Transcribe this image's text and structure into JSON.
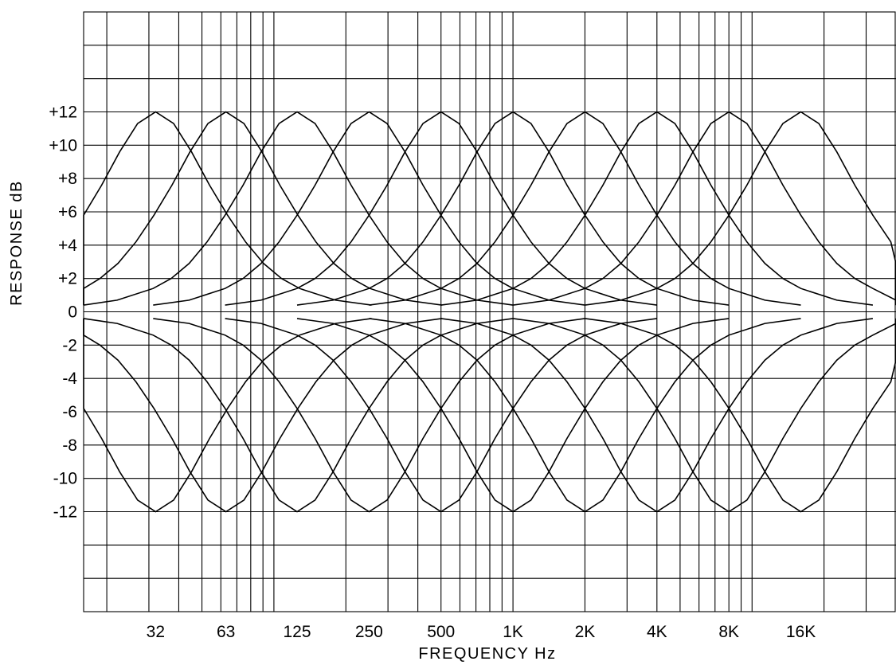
{
  "chart_data": {
    "type": "line",
    "title": "",
    "xlabel": "FREQUENCY Hz",
    "ylabel": "RESPONSE dB",
    "x_scale": "log",
    "xlim": [
      16,
      40000
    ],
    "ylim": [
      -18,
      18
    ],
    "grid": true,
    "legend": "none",
    "x_ticks": [
      {
        "value": 32,
        "label": "32"
      },
      {
        "value": 63,
        "label": "63"
      },
      {
        "value": 125,
        "label": "125"
      },
      {
        "value": 250,
        "label": "250"
      },
      {
        "value": 500,
        "label": "500"
      },
      {
        "value": 1000,
        "label": "1K"
      },
      {
        "value": 2000,
        "label": "2K"
      },
      {
        "value": 4000,
        "label": "4K"
      },
      {
        "value": 8000,
        "label": "8K"
      },
      {
        "value": 16000,
        "label": "16K"
      }
    ],
    "y_ticks": [
      {
        "value": 12,
        "label": "+12"
      },
      {
        "value": 10,
        "label": "+10"
      },
      {
        "value": 8,
        "label": "+8"
      },
      {
        "value": 6,
        "label": "+6"
      },
      {
        "value": 4,
        "label": "+4"
      },
      {
        "value": 2,
        "label": "+2"
      },
      {
        "value": 0,
        "label": "0"
      },
      {
        "value": -2,
        "label": "-2"
      },
      {
        "value": -4,
        "label": "-4"
      },
      {
        "value": -6,
        "label": "-6"
      },
      {
        "value": -8,
        "label": "-8"
      },
      {
        "value": -10,
        "label": "-10"
      },
      {
        "value": -12,
        "label": "-12"
      }
    ],
    "band_shape": {
      "relative_octave": [
        -3.0,
        -2.5,
        -2.0,
        -1.75,
        -1.5,
        -1.25,
        -1.0,
        -0.75,
        -0.5,
        -0.25,
        0.0,
        0.25,
        0.5,
        0.75,
        1.0,
        1.25,
        1.5,
        1.75,
        2.0,
        2.5,
        3.0
      ],
      "gain_db": [
        0.4,
        0.7,
        1.4,
        2.0,
        2.9,
        4.2,
        5.8,
        7.6,
        9.6,
        11.3,
        12.0,
        11.3,
        9.6,
        7.6,
        5.8,
        4.2,
        2.9,
        2.0,
        1.4,
        0.7,
        0.4
      ]
    },
    "series": [
      {
        "center_hz": 32,
        "boost_db": 12
      },
      {
        "center_hz": 63,
        "boost_db": 12
      },
      {
        "center_hz": 125,
        "boost_db": 12
      },
      {
        "center_hz": 250,
        "boost_db": 12
      },
      {
        "center_hz": 500,
        "boost_db": 12
      },
      {
        "center_hz": 1000,
        "boost_db": 12
      },
      {
        "center_hz": 2000,
        "boost_db": 12
      },
      {
        "center_hz": 4000,
        "boost_db": 12
      },
      {
        "center_hz": 8000,
        "boost_db": 12
      },
      {
        "center_hz": 16000,
        "boost_db": 12
      },
      {
        "center_hz": 32,
        "boost_db": -12
      },
      {
        "center_hz": 63,
        "boost_db": -12
      },
      {
        "center_hz": 125,
        "boost_db": -12
      },
      {
        "center_hz": 250,
        "boost_db": -12
      },
      {
        "center_hz": 500,
        "boost_db": -12
      },
      {
        "center_hz": 1000,
        "boost_db": -12
      },
      {
        "center_hz": 2000,
        "boost_db": -12
      },
      {
        "center_hz": 4000,
        "boost_db": -12
      },
      {
        "center_hz": 8000,
        "boost_db": -12
      },
      {
        "center_hz": 16000,
        "boost_db": -12
      }
    ]
  }
}
